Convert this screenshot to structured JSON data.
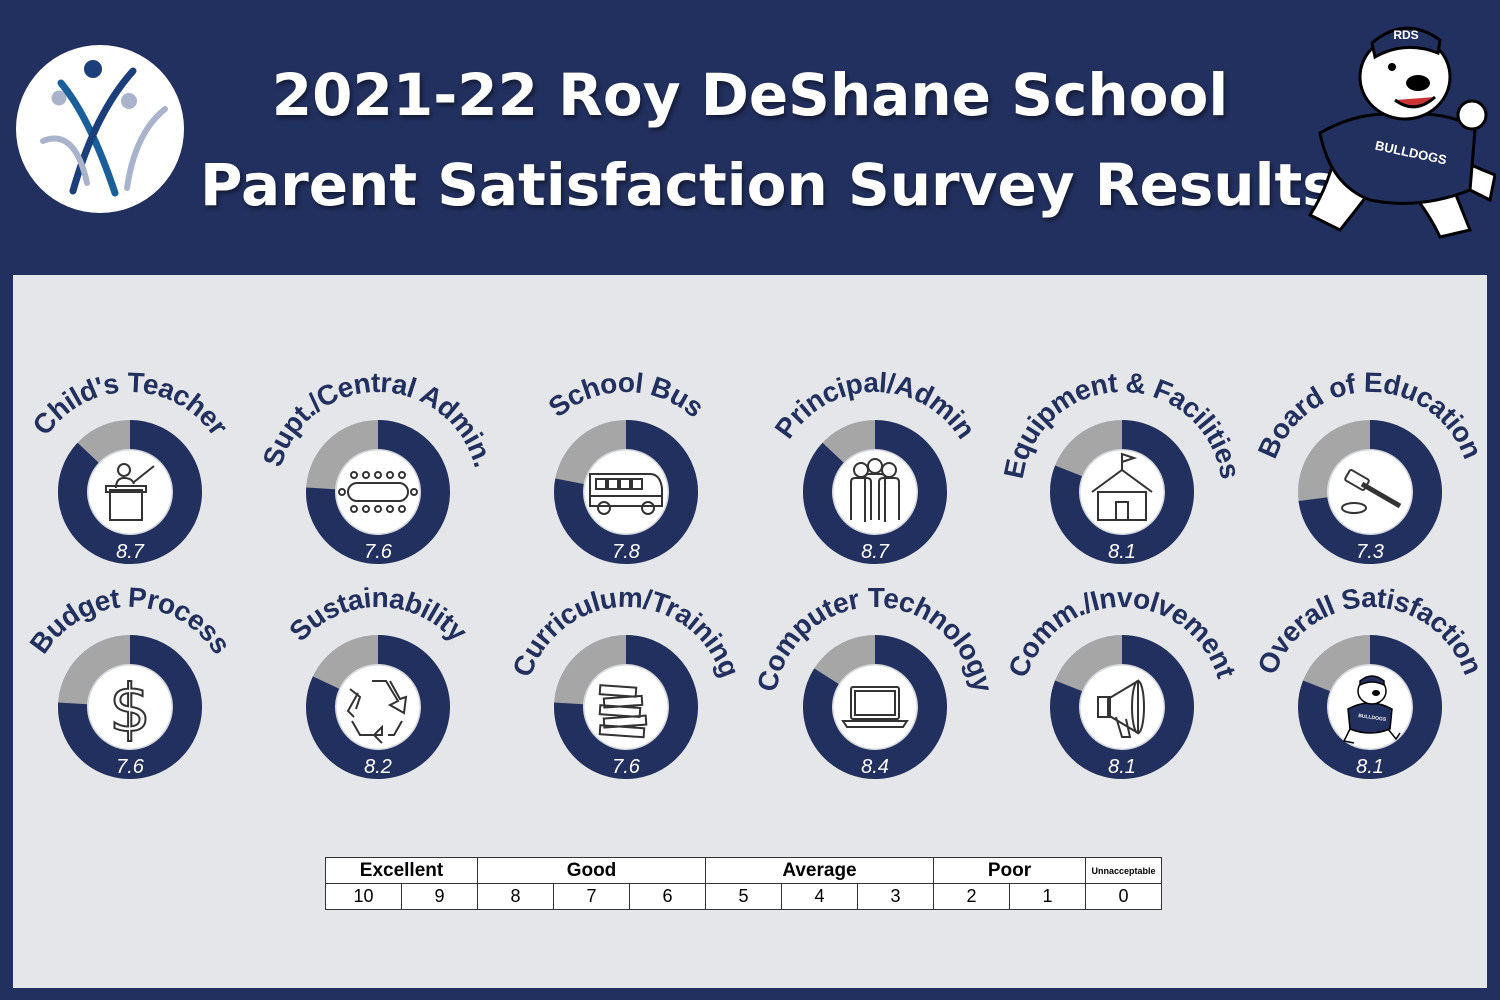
{
  "header": {
    "title_line1": "2021-22 Roy DeShane School",
    "title_line2": "Parent Satisfaction Survey Results",
    "mascot_cap_text": "RDS",
    "mascot_shirt_text": "BULLDOGS"
  },
  "colors": {
    "navy": "#22305f",
    "filled": "#22305f",
    "remainder": "#a6a6a6",
    "panel": "#e4e6ea"
  },
  "chart_data": {
    "type": "donut",
    "scale_max": 10,
    "items": [
      {
        "label": "Child's Teacher",
        "value": 8.7,
        "icon": "teacher-podium-icon"
      },
      {
        "label": "Supt./Central Admin.",
        "value": 7.6,
        "icon": "conference-table-icon"
      },
      {
        "label": "School Bus",
        "value": 7.8,
        "icon": "school-bus-icon"
      },
      {
        "label": "Principal/Admin",
        "value": 8.7,
        "icon": "people-group-icon"
      },
      {
        "label": "Equipment & Facilities",
        "value": 8.1,
        "icon": "school-building-icon"
      },
      {
        "label": "Board of Education",
        "value": 7.3,
        "icon": "gavel-icon"
      },
      {
        "label": "Budget Process",
        "value": 7.6,
        "icon": "dollar-sign-icon"
      },
      {
        "label": "Sustainability",
        "value": 8.2,
        "icon": "recycle-icon"
      },
      {
        "label": "Curriculum/Training",
        "value": 7.6,
        "icon": "book-stack-icon"
      },
      {
        "label": "Computer Technology",
        "value": 8.4,
        "icon": "laptop-icon"
      },
      {
        "label": "Comm./Involvement",
        "value": 8.1,
        "icon": "megaphone-icon"
      },
      {
        "label": "Overall Satisfaction",
        "value": 8.1,
        "icon": "bulldog-mascot-icon"
      }
    ]
  },
  "legend": {
    "groups": [
      {
        "label": "Excellent",
        "span": 2
      },
      {
        "label": "Good",
        "span": 3
      },
      {
        "label": "Average",
        "span": 3
      },
      {
        "label": "Poor",
        "span": 2
      },
      {
        "label": "Unnacceptable",
        "span": 1
      }
    ],
    "scores": [
      "10",
      "9",
      "8",
      "7",
      "6",
      "5",
      "4",
      "3",
      "2",
      "1",
      "0"
    ]
  }
}
